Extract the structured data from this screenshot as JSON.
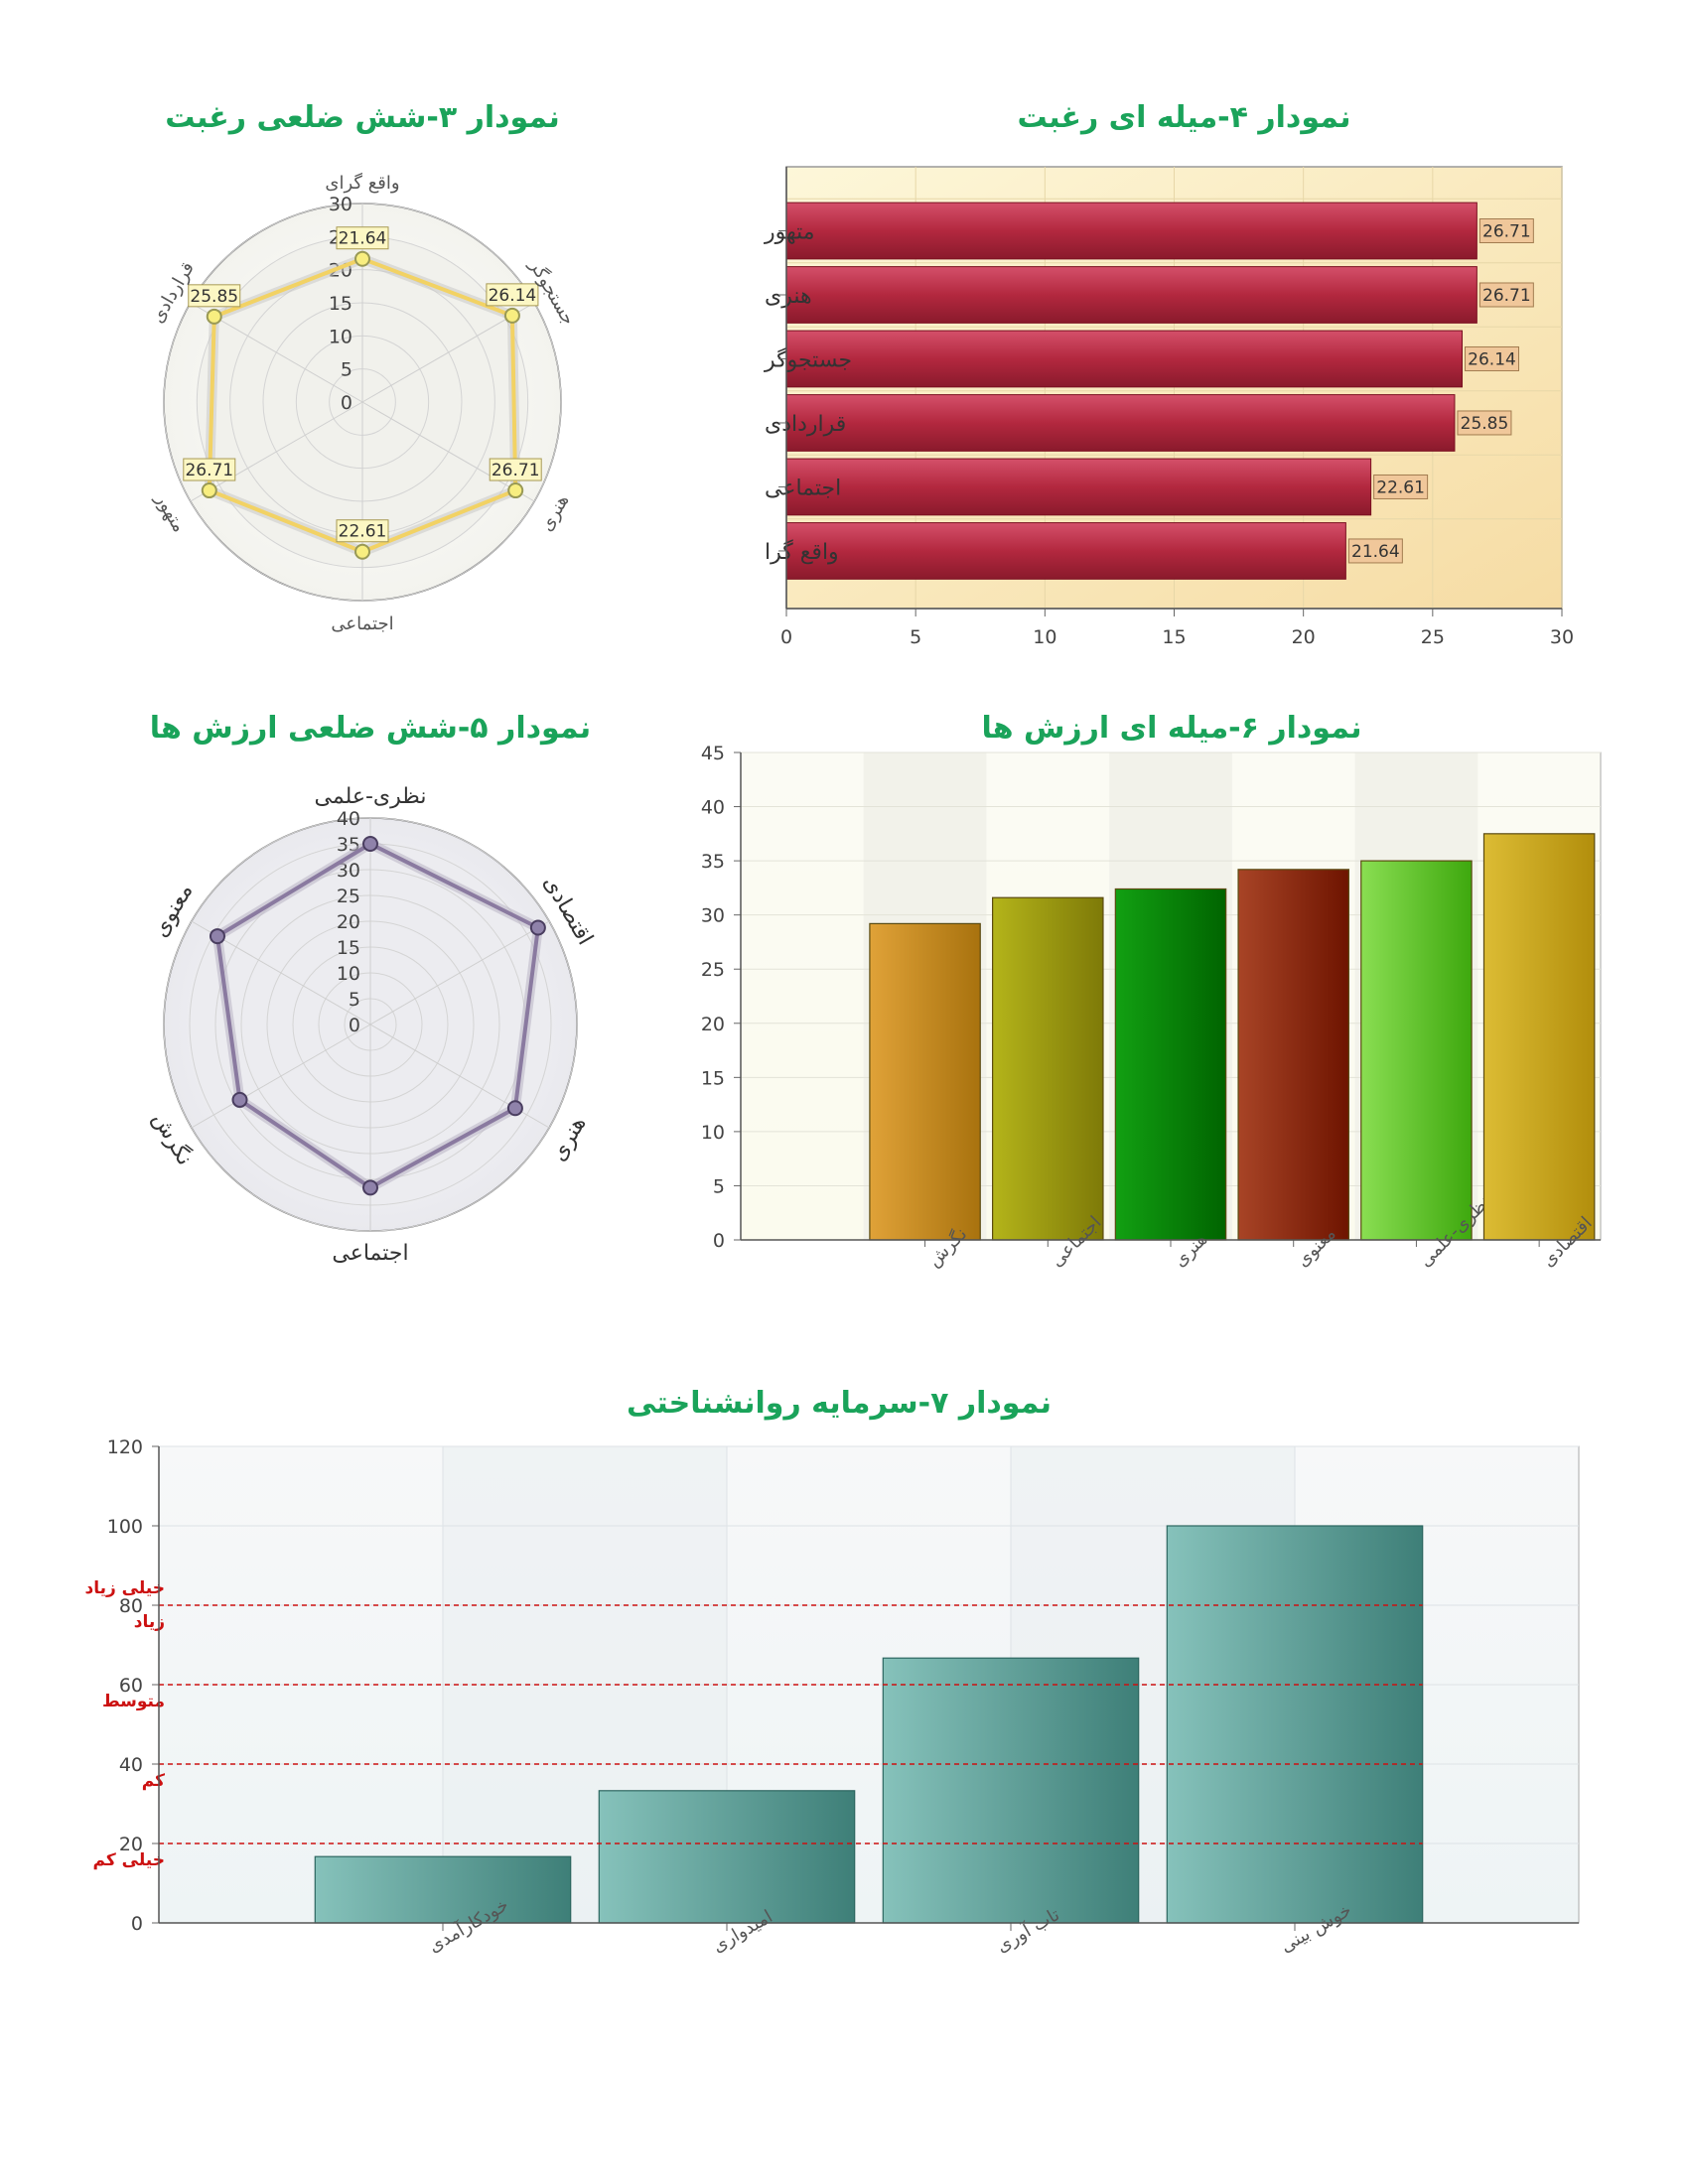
{
  "chart_data": [
    {
      "type": "radar",
      "title": "نمودار ۳-شش ضلعی رغبت",
      "categories": [
        "واقع گرای",
        "جستجوگر",
        "هنری",
        "اجتماعی",
        "متهور",
        "قراردادی"
      ],
      "values": [
        21.64,
        26.14,
        26.71,
        22.61,
        26.71,
        25.85
      ],
      "value_labels": [
        "21.64",
        "26.14",
        "26.71",
        "22.61",
        "26.71",
        "25.85"
      ],
      "ticks": [
        "0",
        "5",
        "10",
        "15",
        "20",
        "25",
        "30"
      ],
      "range": [
        0,
        30
      ],
      "color": "#f2d264"
    },
    {
      "type": "bar",
      "orientation": "horizontal",
      "title": "نمودار ۴-میله ای رغبت",
      "categories": [
        "متهور",
        "هنری",
        "جستجوگر",
        "قراردادی",
        "اجتماعی",
        "واقع گرا"
      ],
      "values": [
        26.71,
        26.71,
        26.14,
        25.85,
        22.61,
        21.64
      ],
      "value_labels": [
        "26.71",
        "26.71",
        "26.14",
        "25.85",
        "22.61",
        "21.64"
      ],
      "ticks": [
        "0",
        "5",
        "10",
        "15",
        "20",
        "25",
        "30"
      ],
      "xlim": [
        0,
        30
      ],
      "color": "#b3283f"
    },
    {
      "type": "radar",
      "title": "نمودار ۵-شش ضلعی ارزش ها",
      "categories": [
        "نظری-علمی",
        "اقتصادی",
        "هنری",
        "اجتماعی",
        "نگرش",
        "معنوی"
      ],
      "values": [
        35,
        37.5,
        32.4,
        31.6,
        29.2,
        34.2
      ],
      "ticks": [
        "0",
        "5",
        "10",
        "15",
        "20",
        "25",
        "30",
        "35",
        "40"
      ],
      "range": [
        0,
        40
      ],
      "color": "#8a7aa0"
    },
    {
      "type": "bar",
      "title": "نمودار ۶-میله ای ارزش ها",
      "categories": [
        "نگرش",
        "اجتماعی",
        "هنری",
        "معنوی",
        "نظری-علمی",
        "اقتصادی"
      ],
      "values": [
        29.2,
        31.6,
        32.4,
        34.2,
        35,
        37.5
      ],
      "ticks": [
        "0",
        "5",
        "10",
        "15",
        "20",
        "25",
        "30",
        "35",
        "40",
        "45"
      ],
      "ylim": [
        0,
        45
      ],
      "colors": [
        [
          "#e0a238",
          "#a8720e"
        ],
        [
          "#b4b41a",
          "#7e7a08"
        ],
        [
          "#12a012",
          "#006400"
        ],
        [
          "#a84426",
          "#6e1400"
        ],
        [
          "#8ade52",
          "#3ea80e"
        ],
        [
          "#dcbc34",
          "#b28e0c"
        ]
      ]
    },
    {
      "type": "bar",
      "title": "نمودار ۷-سرمایه  روانشناختی",
      "categories": [
        "خودکارآمدی",
        "امیدواری",
        "تاب آوری",
        "خوش بینی"
      ],
      "values": [
        16.7,
        33.3,
        66.7,
        100
      ],
      "ticks": [
        "0",
        "20",
        "40",
        "60",
        "80",
        "100",
        "120"
      ],
      "ylim": [
        0,
        120
      ],
      "reference_lines": [
        {
          "value": 20,
          "label": "خیلی کم"
        },
        {
          "value": 40,
          "label": "کم"
        },
        {
          "value": 60,
          "label": "متوسط"
        },
        {
          "value": 80,
          "label": "زیاد"
        },
        {
          "value": 80,
          "label": "خیلی زیاد"
        }
      ],
      "color": "#5e9e98"
    }
  ]
}
